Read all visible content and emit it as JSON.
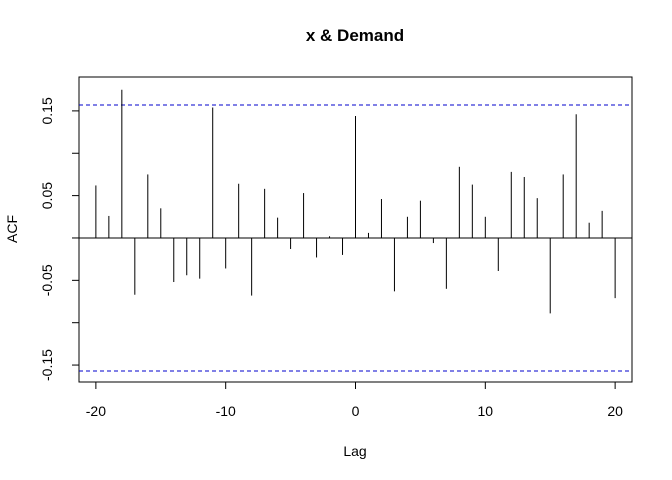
{
  "chart_data": {
    "type": "bar",
    "title": "x & Demand",
    "xlabel": "Lag",
    "ylabel": "ACF",
    "xlim": [
      -21.3,
      21.3
    ],
    "ylim": [
      -0.17,
      0.19
    ],
    "x_ticks": [
      -20,
      -10,
      0,
      10,
      20
    ],
    "x_tick_labels": [
      "-20",
      "-10",
      "0",
      "10",
      "20"
    ],
    "y_ticks": [
      -0.15,
      -0.1,
      -0.05,
      0.0,
      0.05,
      0.1,
      0.15
    ],
    "y_tick_labels": [
      "-0.15",
      "",
      "-0.05",
      "",
      "0.05",
      "",
      "0.15"
    ],
    "confidence_bound": 0.157,
    "confidence_color": "#0000cc",
    "lag": [
      -20,
      -19,
      -18,
      -17,
      -16,
      -15,
      -14,
      -13,
      -12,
      -11,
      -10,
      -9,
      -8,
      -7,
      -6,
      -5,
      -4,
      -3,
      -2,
      -1,
      0,
      1,
      2,
      3,
      4,
      5,
      6,
      7,
      8,
      9,
      10,
      11,
      12,
      13,
      14,
      15,
      16,
      17,
      18,
      19,
      20
    ],
    "acf": [
      0.062,
      0.026,
      0.175,
      -0.067,
      0.075,
      0.035,
      -0.052,
      -0.044,
      -0.048,
      0.154,
      -0.036,
      0.064,
      -0.068,
      0.058,
      0.024,
      -0.013,
      0.053,
      -0.023,
      0.002,
      -0.02,
      0.144,
      0.006,
      0.046,
      -0.063,
      0.025,
      0.044,
      -0.006,
      -0.06,
      0.084,
      0.063,
      0.025,
      -0.039,
      0.078,
      0.072,
      0.047,
      -0.089,
      0.075,
      0.146,
      0.018,
      0.032,
      -0.071
    ]
  }
}
